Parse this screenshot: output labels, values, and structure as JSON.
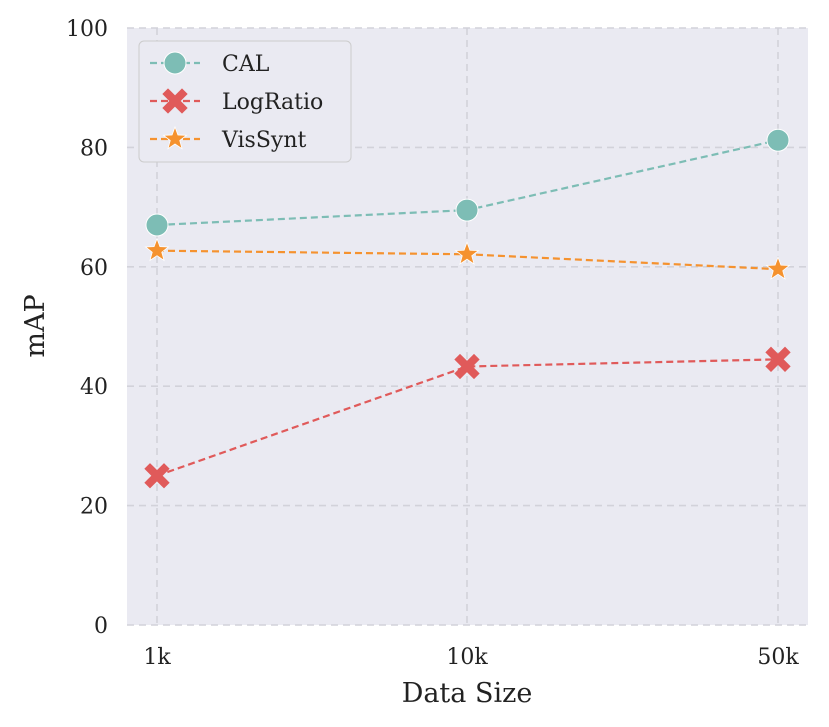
{
  "chart_data": {
    "type": "line",
    "title": "",
    "xlabel": "Data Size",
    "ylabel": "mAP",
    "categories": [
      "1k",
      "10k",
      "50k"
    ],
    "ylim": [
      0,
      100
    ],
    "yticks": [
      0,
      20,
      40,
      60,
      80,
      100
    ],
    "grid": true,
    "legend_position": "top-left",
    "background": "#eaeaf2",
    "series": [
      {
        "name": "CAL",
        "values": [
          67.0,
          69.5,
          81.2
        ],
        "color": "#7dbdb5",
        "marker": "circle",
        "linestyle": "dashed"
      },
      {
        "name": "LogRatio",
        "values": [
          25.0,
          43.3,
          44.5
        ],
        "color": "#e05a5a",
        "marker": "x",
        "linestyle": "dashed"
      },
      {
        "name": "VisSynt",
        "values": [
          62.7,
          62.1,
          59.6
        ],
        "color": "#f5922f",
        "marker": "star",
        "linestyle": "dashed"
      }
    ]
  }
}
